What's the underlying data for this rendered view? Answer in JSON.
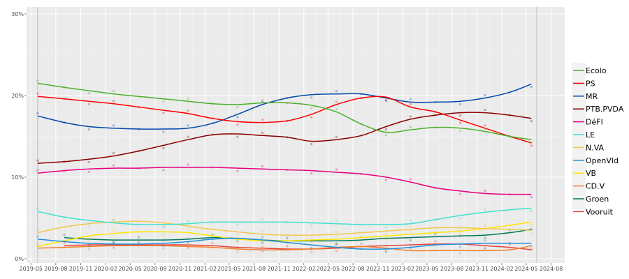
{
  "chart_data": {
    "type": "line",
    "title": "",
    "xlabel": "",
    "ylabel": "",
    "ylim": [
      0,
      30
    ],
    "xlim": [
      "2019-04-15",
      "2024-09-20"
    ],
    "grid": true,
    "legend_position": "right",
    "y_ticks": [
      {
        "value": 0,
        "label": "0%"
      },
      {
        "value": 10,
        "label": "10%"
      },
      {
        "value": 20,
        "label": "20%"
      },
      {
        "value": 30,
        "label": "30%"
      }
    ],
    "x_ticks": [
      {
        "value": "2019-05-01",
        "label": "2019-05"
      },
      {
        "value": "2019-08-01",
        "label": "2019-08"
      },
      {
        "value": "2019-11-01",
        "label": "2019-11"
      },
      {
        "value": "2020-02-01",
        "label": "2020-02"
      },
      {
        "value": "2020-05-01",
        "label": "2020-05"
      },
      {
        "value": "2020-08-01",
        "label": "2020-08"
      },
      {
        "value": "2020-11-01",
        "label": "2020-11"
      },
      {
        "value": "2021-02-01",
        "label": "2021-02"
      },
      {
        "value": "2021-05-01",
        "label": "2021-05"
      },
      {
        "value": "2021-08-01",
        "label": "2021-08"
      },
      {
        "value": "2021-11-01",
        "label": "2021-11"
      },
      {
        "value": "2022-02-01",
        "label": "2022-02"
      },
      {
        "value": "2022-05-01",
        "label": "2022-05"
      },
      {
        "value": "2022-08-01",
        "label": "2022-08"
      },
      {
        "value": "2022-11-01",
        "label": "2022-11"
      },
      {
        "value": "2023-02-01",
        "label": "2023-02"
      },
      {
        "value": "2023-05-01",
        "label": "2023-05"
      },
      {
        "value": "2023-08-01",
        "label": "2023-08"
      },
      {
        "value": "2023-11-01",
        "label": "2023-11"
      },
      {
        "value": "2024-02-01",
        "label": "2024-02"
      },
      {
        "value": "2024-05-01",
        "label": "2024-05"
      },
      {
        "value": "2024-08-01",
        "label": "2024-08"
      }
    ],
    "reference_lines": [
      "2019-05-26",
      "2024-06-09"
    ],
    "x": [
      "2019-05-26",
      "2019-09-01",
      "2019-12-01",
      "2020-03-01",
      "2020-06-01",
      "2020-09-01",
      "2020-12-01",
      "2021-03-01",
      "2021-06-01",
      "2021-09-01",
      "2021-12-01",
      "2022-03-01",
      "2022-06-01",
      "2022-09-01",
      "2022-12-01",
      "2023-03-01",
      "2023-06-01",
      "2023-09-01",
      "2023-12-01",
      "2024-03-01",
      "2024-05-20"
    ],
    "series": [
      {
        "name": "Ecolo",
        "color": "#4daf2b",
        "values": [
          21.5,
          21.0,
          20.6,
          20.2,
          19.9,
          19.6,
          19.3,
          19.0,
          18.9,
          19.1,
          19.1,
          18.8,
          18.0,
          16.5,
          15.5,
          15.8,
          16.1,
          16.0,
          15.6,
          15.0,
          14.6
        ]
      },
      {
        "name": "PS",
        "color": "#ff0000",
        "values": [
          19.9,
          19.6,
          19.3,
          19.0,
          18.6,
          18.2,
          17.8,
          17.2,
          16.8,
          16.7,
          16.9,
          17.7,
          18.9,
          19.7,
          19.8,
          18.6,
          18.0,
          17.0,
          16.0,
          15.0,
          14.2
        ]
      },
      {
        "name": "MR",
        "color": "#0047ab",
        "values": [
          17.5,
          16.7,
          16.2,
          16.0,
          15.9,
          15.9,
          16.0,
          16.6,
          17.7,
          18.9,
          19.7,
          20.1,
          20.2,
          20.2,
          19.7,
          19.2,
          19.2,
          19.3,
          19.7,
          20.4,
          21.4
        ]
      },
      {
        "name": "PTB.PVDA",
        "color": "#8b0000",
        "values": [
          11.7,
          11.9,
          12.2,
          12.6,
          13.2,
          13.9,
          14.6,
          15.2,
          15.3,
          15.1,
          14.9,
          14.4,
          14.6,
          15.1,
          16.2,
          17.1,
          17.6,
          17.9,
          17.9,
          17.6,
          17.2
        ]
      },
      {
        "name": "DéFI",
        "color": "#e6007e",
        "values": [
          10.5,
          10.8,
          11.0,
          11.1,
          11.1,
          11.2,
          11.2,
          11.2,
          11.1,
          11.0,
          10.9,
          10.8,
          10.6,
          10.4,
          10.0,
          9.4,
          8.7,
          8.3,
          8.0,
          7.9,
          7.9
        ]
      },
      {
        "name": "LE",
        "color": "#40e0d0",
        "values": [
          5.8,
          5.1,
          4.7,
          4.4,
          4.2,
          4.2,
          4.3,
          4.5,
          4.5,
          4.5,
          4.5,
          4.4,
          4.3,
          4.2,
          4.2,
          4.3,
          4.8,
          5.3,
          5.7,
          6.0,
          6.2
        ]
      },
      {
        "name": "N.VA",
        "color": "#f2c94c",
        "values": [
          3.2,
          3.9,
          4.3,
          4.5,
          4.6,
          4.4,
          4.0,
          3.6,
          3.3,
          3.0,
          2.9,
          2.9,
          3.0,
          3.2,
          3.4,
          3.6,
          3.8,
          3.8,
          3.7,
          3.6,
          3.5
        ]
      },
      {
        "name": "OpenVld",
        "color": "#1f8fdb",
        "values": [
          2.4,
          2.1,
          1.9,
          1.8,
          1.8,
          1.9,
          2.1,
          2.4,
          2.5,
          2.3,
          2.0,
          1.7,
          1.4,
          1.2,
          1.2,
          1.4,
          1.7,
          1.8,
          1.9,
          1.9,
          1.9
        ]
      },
      {
        "name": "VB",
        "color": "#ffe600",
        "values": [
          1.5,
          2.2,
          2.8,
          3.1,
          3.3,
          3.3,
          3.2,
          2.8,
          2.4,
          2.2,
          2.2,
          2.3,
          2.4,
          2.6,
          2.8,
          3.0,
          3.2,
          3.4,
          3.7,
          4.1,
          4.5
        ]
      },
      {
        "name": "CD.V",
        "color": "#f08030",
        "values": [
          1.3,
          1.4,
          1.5,
          1.6,
          1.6,
          1.6,
          1.5,
          1.4,
          1.2,
          1.1,
          1.1,
          1.2,
          1.4,
          1.5,
          1.3,
          1.0,
          1.0,
          1.0,
          1.0,
          1.1,
          1.6
        ]
      },
      {
        "name": "Groen",
        "color": "#00785a",
        "values": [
          null,
          2.6,
          2.4,
          2.3,
          2.3,
          2.3,
          2.4,
          2.6,
          2.5,
          2.3,
          2.2,
          2.2,
          2.2,
          2.3,
          2.5,
          2.6,
          2.7,
          2.8,
          2.9,
          3.2,
          3.6
        ]
      },
      {
        "name": "Vooruit",
        "color": "#e8423b",
        "values": [
          null,
          1.6,
          1.7,
          1.7,
          1.7,
          1.7,
          1.7,
          1.6,
          1.4,
          1.3,
          1.2,
          1.2,
          1.3,
          1.5,
          1.6,
          1.7,
          1.8,
          1.8,
          1.6,
          1.4,
          1.1
        ]
      }
    ]
  }
}
